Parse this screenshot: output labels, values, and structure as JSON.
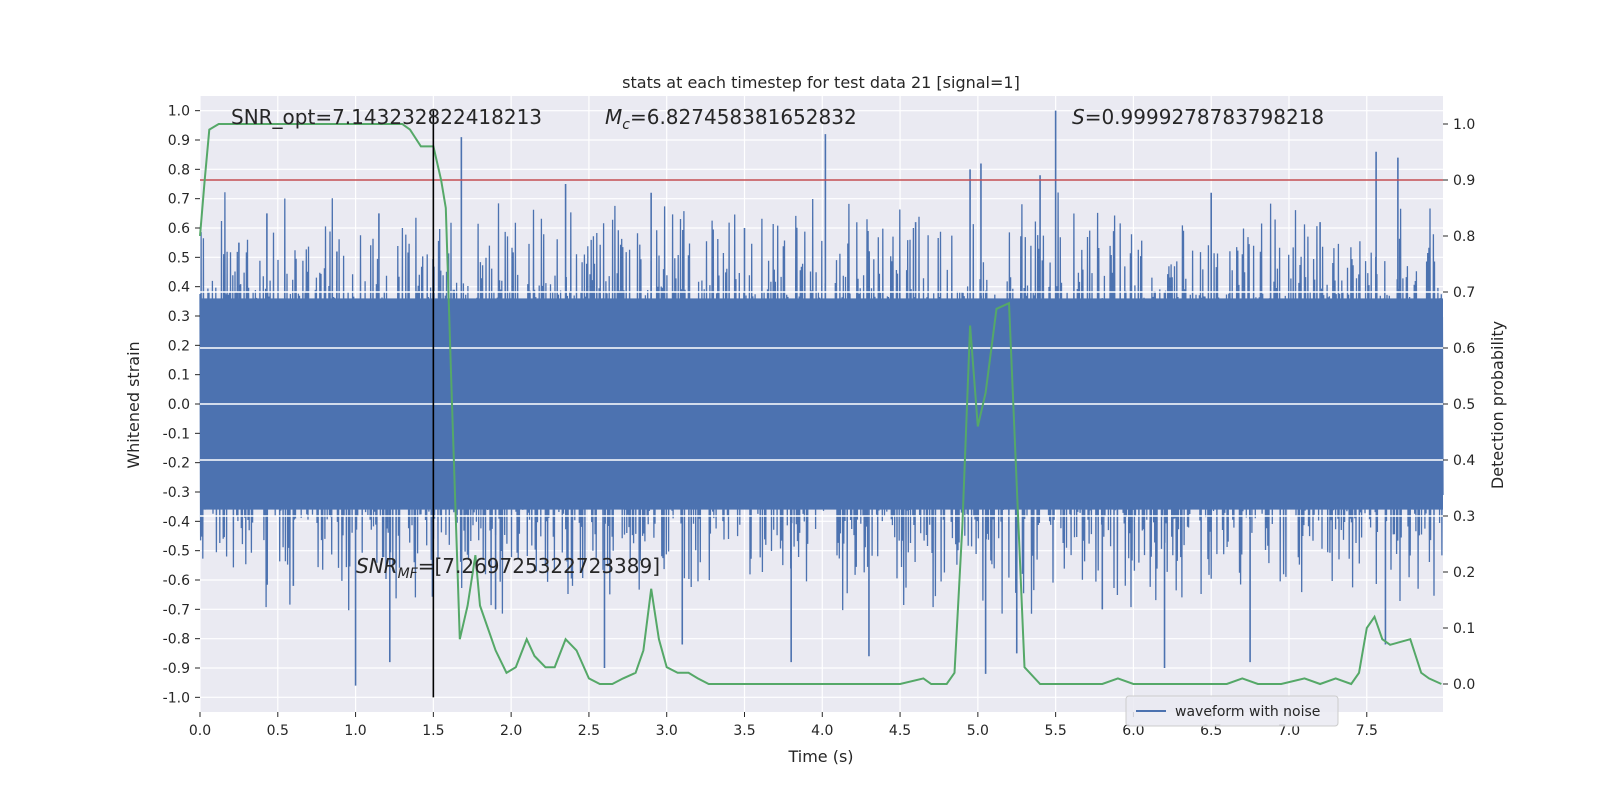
{
  "chart_data": {
    "type": "line",
    "title": "stats at each timestep for test data 21 [signal=1]",
    "xlabel": "Time (s)",
    "ylabel_left": "Whitened strain",
    "ylabel_right": "Detection probability",
    "xlim": [
      0.0,
      7.99
    ],
    "ylim_left": [
      -1.05,
      1.05
    ],
    "ylim_right": [
      -0.05,
      1.05
    ],
    "x_ticks": [
      0.0,
      0.5,
      1.0,
      1.5,
      2.0,
      2.5,
      3.0,
      3.5,
      4.0,
      4.5,
      5.0,
      5.5,
      6.0,
      6.5,
      7.0,
      7.5
    ],
    "x_tick_labels": [
      "0.0",
      "0.5",
      "1.0",
      "1.5",
      "2.0",
      "2.5",
      "3.0",
      "3.5",
      "4.0",
      "4.5",
      "5.0",
      "5.5",
      "6.0",
      "6.5",
      "7.0",
      "7.5"
    ],
    "y_left_ticks": [
      1.0,
      0.9,
      0.8,
      0.7,
      0.6,
      0.5,
      0.4,
      0.3,
      0.2,
      0.1,
      0.0,
      -0.1,
      -0.2,
      -0.3,
      -0.4,
      -0.5,
      -0.6,
      -0.7,
      -0.8,
      -0.9,
      -1.0
    ],
    "y_left_tick_labels": [
      "1.0",
      "0.9",
      "0.8",
      "0.7",
      "0.6",
      "0.5",
      "0.4",
      "0.3",
      "0.2",
      "0.1",
      "0.0",
      "-0.1",
      "-0.2",
      "-0.3",
      "-0.4",
      "-0.5",
      "-0.6",
      "-0.7",
      "-0.8",
      "-0.9",
      "-1.0"
    ],
    "y_right_ticks": [
      1.0,
      0.9,
      0.8,
      0.7,
      0.6,
      0.5,
      0.4,
      0.3,
      0.2,
      0.1,
      0.0
    ],
    "y_right_tick_labels": [
      "1.0",
      "0.9",
      "0.8",
      "0.7",
      "0.6",
      "0.5",
      "0.4",
      "0.3",
      "0.2",
      "0.1",
      "0.0"
    ],
    "threshold": 0.9,
    "merger_time": 1.5,
    "annotations": {
      "snr_opt": "SNR_opt=7.143232822418213",
      "mc_symbol": "M",
      "mc_sub": "c",
      "mc_value": "=6.827458381652832",
      "s_symbol": "S",
      "s_value": "=0.9999278783798218",
      "snrmf_symbol": "SNR",
      "snrmf_sub": "MF",
      "snrmf_value": "=[7.269725322723389]"
    },
    "series": [
      {
        "name": "waveform with noise",
        "axis": "left",
        "color": "#4c72b0",
        "style": "noise",
        "core_amplitude": 0.35,
        "spikes": [
          {
            "x": 0.25,
            "y": 0.55
          },
          {
            "x": 0.43,
            "y": 0.65
          },
          {
            "x": 0.6,
            "y": -0.62
          },
          {
            "x": 0.88,
            "y": 0.52
          },
          {
            "x": 1.0,
            "y": -0.96
          },
          {
            "x": 1.15,
            "y": 0.65
          },
          {
            "x": 1.22,
            "y": -0.88
          },
          {
            "x": 1.68,
            "y": 0.91
          },
          {
            "x": 1.9,
            "y": -0.7
          },
          {
            "x": 2.35,
            "y": 0.75
          },
          {
            "x": 2.6,
            "y": -0.9
          },
          {
            "x": 2.9,
            "y": 0.72
          },
          {
            "x": 3.1,
            "y": -0.82
          },
          {
            "x": 3.5,
            "y": 0.6
          },
          {
            "x": 3.8,
            "y": -0.88
          },
          {
            "x": 4.02,
            "y": 0.92
          },
          {
            "x": 4.3,
            "y": -0.86
          },
          {
            "x": 4.6,
            "y": 0.62
          },
          {
            "x": 4.95,
            "y": 0.8
          },
          {
            "x": 5.02,
            "y": 0.82
          },
          {
            "x": 5.05,
            "y": -0.92
          },
          {
            "x": 5.25,
            "y": -0.85
          },
          {
            "x": 5.5,
            "y": 1.0
          },
          {
            "x": 5.4,
            "y": 0.78
          },
          {
            "x": 5.8,
            "y": -0.7
          },
          {
            "x": 6.2,
            "y": -0.9
          },
          {
            "x": 6.5,
            "y": 0.72
          },
          {
            "x": 6.75,
            "y": -0.88
          },
          {
            "x": 7.2,
            "y": 0.62
          },
          {
            "x": 7.56,
            "y": 0.86
          },
          {
            "x": 7.62,
            "y": -0.82
          },
          {
            "x": 7.7,
            "y": 0.84
          }
        ]
      },
      {
        "name": "detection probability",
        "axis": "right",
        "color": "#55a868",
        "x": [
          0.0,
          0.03,
          0.06,
          0.12,
          0.2,
          0.3,
          0.4,
          0.5,
          0.6,
          0.7,
          0.8,
          0.9,
          1.0,
          1.1,
          1.2,
          1.3,
          1.35,
          1.42,
          1.5,
          1.55,
          1.58,
          1.62,
          1.67,
          1.72,
          1.77,
          1.8,
          1.85,
          1.9,
          1.97,
          2.03,
          2.1,
          2.15,
          2.22,
          2.28,
          2.35,
          2.42,
          2.5,
          2.57,
          2.65,
          2.72,
          2.8,
          2.85,
          2.9,
          2.95,
          3.0,
          3.07,
          3.14,
          3.2,
          3.27,
          3.35,
          3.45,
          3.6,
          3.8,
          3.95,
          4.1,
          4.3,
          4.5,
          4.65,
          4.7,
          4.8,
          4.85,
          4.9,
          4.95,
          5.0,
          5.05,
          5.12,
          5.2,
          5.3,
          5.4,
          5.5,
          5.65,
          5.8,
          5.9,
          6.0,
          6.2,
          6.4,
          6.6,
          6.7,
          6.8,
          6.95,
          7.1,
          7.2,
          7.3,
          7.4,
          7.45,
          7.5,
          7.55,
          7.6,
          7.65,
          7.78,
          7.85,
          7.9,
          7.98
        ],
        "y": [
          0.8,
          0.9,
          0.99,
          1.0,
          1.0,
          1.0,
          1.0,
          1.0,
          1.0,
          1.0,
          1.0,
          1.0,
          1.0,
          1.0,
          1.0,
          1.0,
          0.99,
          0.96,
          0.96,
          0.9,
          0.85,
          0.5,
          0.08,
          0.14,
          0.23,
          0.14,
          0.1,
          0.06,
          0.02,
          0.03,
          0.08,
          0.05,
          0.03,
          0.03,
          0.08,
          0.06,
          0.01,
          0.0,
          0.0,
          0.01,
          0.02,
          0.06,
          0.17,
          0.08,
          0.03,
          0.02,
          0.02,
          0.01,
          0.0,
          0.0,
          0.0,
          0.0,
          0.0,
          0.0,
          0.0,
          0.0,
          0.0,
          0.01,
          0.0,
          0.0,
          0.02,
          0.28,
          0.64,
          0.46,
          0.52,
          0.67,
          0.68,
          0.03,
          0.0,
          0.0,
          0.0,
          0.0,
          0.01,
          0.0,
          0.0,
          0.0,
          0.0,
          0.01,
          0.0,
          0.0,
          0.01,
          0.0,
          0.01,
          0.0,
          0.02,
          0.1,
          0.12,
          0.08,
          0.07,
          0.08,
          0.02,
          0.01,
          0.0
        ]
      }
    ],
    "legend": {
      "location": "lower-right",
      "entries": [
        "waveform with noise"
      ]
    },
    "grid": true
  }
}
